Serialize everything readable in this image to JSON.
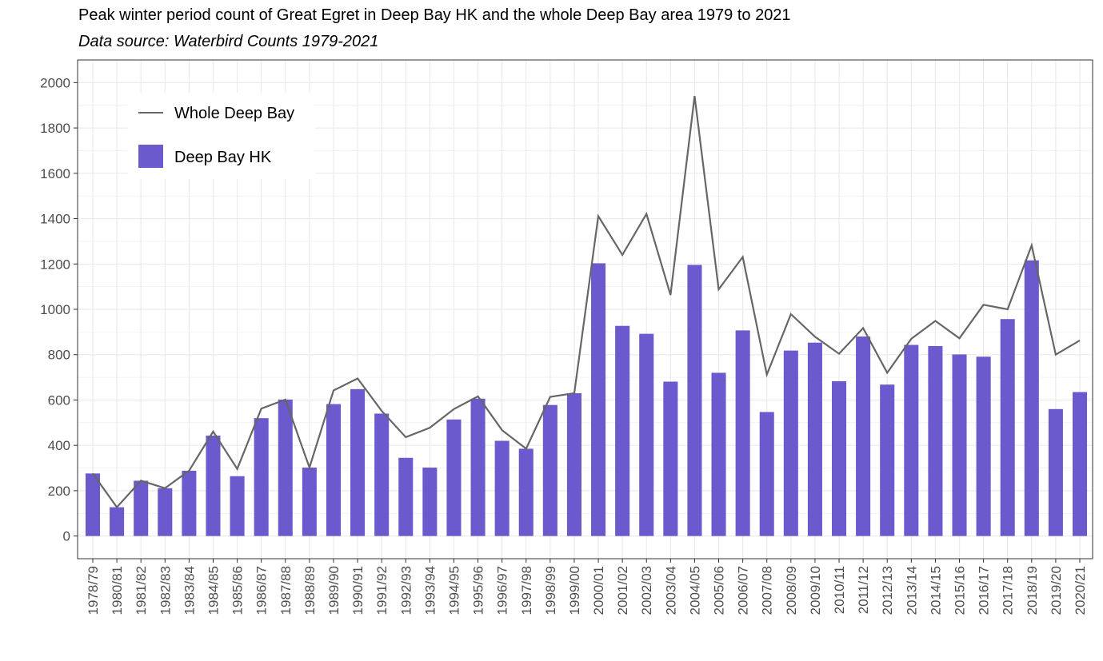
{
  "chart_data": {
    "type": "bar",
    "title": "Peak winter period count of Great Egret in Deep Bay HK and the whole Deep Bay area 1979 to 2021",
    "subtitle": "Data source: Waterbird Counts 1979-2021",
    "xlabel": "",
    "ylabel": "",
    "ylim": [
      -100,
      2100
    ],
    "yticks": [
      0,
      200,
      400,
      600,
      800,
      1000,
      1200,
      1400,
      1600,
      1800,
      2000
    ],
    "grid": true,
    "legend_position": "top-left",
    "categories": [
      "1978/79",
      "1980/81",
      "1981/82",
      "1982/83",
      "1983/84",
      "1984/85",
      "1985/86",
      "1986/87",
      "1987/88",
      "1988/89",
      "1989/90",
      "1990/91",
      "1991/92",
      "1992/93",
      "1993/94",
      "1994/95",
      "1995/96",
      "1996/97",
      "1997/98",
      "1998/99",
      "1999/00",
      "2000/01",
      "2001/02",
      "2002/03",
      "2003/04",
      "2004/05",
      "2005/06",
      "2006/07",
      "2007/08",
      "2008/09",
      "2009/10",
      "2010/11",
      "2011/12",
      "2012/13",
      "2013/14",
      "2014/15",
      "2015/16",
      "2016/17",
      "2017/18",
      "2018/19",
      "2019/20",
      "2020/21"
    ],
    "series": [
      {
        "name": "Deep Bay HK",
        "type": "bar",
        "color": "#6a5acd",
        "values": [
          276,
          127,
          244,
          211,
          288,
          443,
          264,
          520,
          602,
          302,
          582,
          648,
          540,
          345,
          302,
          514,
          606,
          420,
          385,
          578,
          630,
          1203,
          927,
          892,
          681,
          1196,
          720,
          907,
          547,
          818,
          853,
          683,
          880,
          668,
          843,
          838,
          801,
          791,
          957,
          1216,
          560,
          635
        ]
      },
      {
        "name": "Whole Deep Bay",
        "type": "line",
        "color": "#666666",
        "values": [
          276,
          127,
          244,
          211,
          288,
          461,
          296,
          562,
          602,
          302,
          642,
          695,
          552,
          436,
          478,
          560,
          616,
          467,
          385,
          614,
          630,
          1411,
          1240,
          1421,
          1063,
          1941,
          1088,
          1231,
          712,
          979,
          879,
          804,
          917,
          720,
          870,
          949,
          872,
          1020,
          1000,
          1282,
          800,
          863
        ]
      }
    ]
  }
}
